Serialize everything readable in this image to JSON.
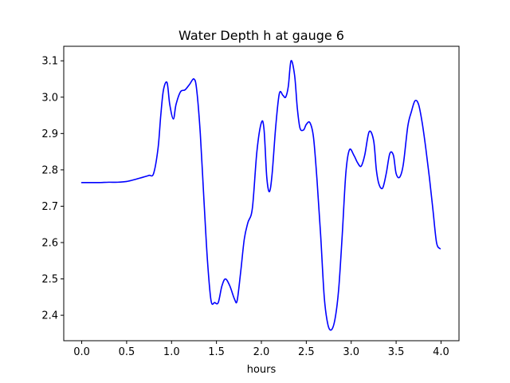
{
  "chart_data": {
    "type": "line",
    "title": "Water Depth h at gauge 6",
    "xlabel": "hours",
    "ylabel": "",
    "xlim": [
      -0.2,
      4.2
    ],
    "ylim": [
      2.33,
      3.14
    ],
    "xticks": [
      0.0,
      0.5,
      1.0,
      1.5,
      2.0,
      2.5,
      3.0,
      3.5,
      4.0
    ],
    "xtick_labels": [
      "0.0",
      "0.5",
      "1.0",
      "1.5",
      "2.0",
      "2.5",
      "3.0",
      "3.5",
      "4.0"
    ],
    "yticks": [
      2.4,
      2.5,
      2.6,
      2.7,
      2.8,
      2.9,
      3.0,
      3.1
    ],
    "ytick_labels": [
      "2.4",
      "2.5",
      "2.6",
      "2.7",
      "2.8",
      "2.9",
      "3.0",
      "3.1"
    ],
    "grid": false,
    "series": [
      {
        "color": "#0000ff",
        "x": [
          0.0,
          0.1,
          0.2,
          0.3,
          0.4,
          0.5,
          0.6,
          0.7,
          0.75,
          0.8,
          0.85,
          0.88,
          0.91,
          0.95,
          0.98,
          1.02,
          1.05,
          1.1,
          1.15,
          1.2,
          1.25,
          1.28,
          1.32,
          1.36,
          1.4,
          1.44,
          1.48,
          1.52,
          1.56,
          1.6,
          1.65,
          1.7,
          1.73,
          1.77,
          1.81,
          1.85,
          1.9,
          1.95,
          2.0,
          2.03,
          2.06,
          2.09,
          2.12,
          2.16,
          2.2,
          2.24,
          2.27,
          2.3,
          2.33,
          2.37,
          2.4,
          2.43,
          2.47,
          2.5,
          2.54,
          2.58,
          2.62,
          2.66,
          2.7,
          2.74,
          2.78,
          2.82,
          2.86,
          2.9,
          2.94,
          2.98,
          3.03,
          3.07,
          3.11,
          3.15,
          3.2,
          3.25,
          3.28,
          3.31,
          3.35,
          3.39,
          3.43,
          3.47,
          3.5,
          3.54,
          3.58,
          3.63,
          3.67,
          3.71,
          3.75,
          3.79,
          3.83,
          3.87,
          3.91,
          3.95,
          3.99
        ],
        "y": [
          2.765,
          2.765,
          2.765,
          2.766,
          2.766,
          2.768,
          2.774,
          2.781,
          2.785,
          2.79,
          2.86,
          2.95,
          3.02,
          3.04,
          2.98,
          2.94,
          2.98,
          3.015,
          3.02,
          3.035,
          3.05,
          3.02,
          2.9,
          2.72,
          2.55,
          2.44,
          2.435,
          2.435,
          2.48,
          2.5,
          2.48,
          2.445,
          2.44,
          2.52,
          2.61,
          2.655,
          2.695,
          2.85,
          2.93,
          2.91,
          2.78,
          2.74,
          2.79,
          2.92,
          3.01,
          3.005,
          3.0,
          3.03,
          3.1,
          3.06,
          2.97,
          2.915,
          2.91,
          2.925,
          2.93,
          2.89,
          2.77,
          2.62,
          2.45,
          2.375,
          2.36,
          2.39,
          2.47,
          2.62,
          2.79,
          2.855,
          2.84,
          2.82,
          2.81,
          2.84,
          2.905,
          2.88,
          2.8,
          2.76,
          2.75,
          2.79,
          2.845,
          2.84,
          2.79,
          2.78,
          2.815,
          2.92,
          2.96,
          2.99,
          2.98,
          2.93,
          2.86,
          2.78,
          2.69,
          2.6,
          2.583
        ]
      }
    ]
  }
}
